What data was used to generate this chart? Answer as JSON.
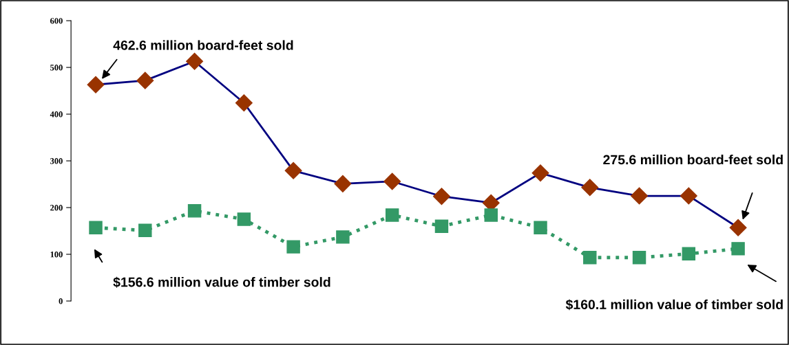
{
  "chart_data": {
    "type": "line",
    "categories": [
      null,
      null,
      null,
      null,
      null,
      null,
      null,
      null,
      null,
      null,
      null,
      null,
      null,
      null
    ],
    "series": [
      {
        "color": "#000080",
        "colors": [
          "#993300",
          "#993300",
          "#993300",
          "#993300",
          "#993300",
          "#993300",
          "#993300",
          "#993300",
          "#993300",
          "#993300",
          "#993300",
          "#993300",
          "#993300",
          "#993300"
        ],
        "marker": "diamond",
        "line_style": "solid",
        "values": [
          463,
          472,
          513,
          424,
          279,
          251,
          256,
          224,
          210,
          274,
          243,
          225,
          225,
          157
        ]
      },
      {
        "color": "#339966",
        "marker": "square",
        "line_style": "dotted",
        "values": [
          157,
          151,
          193,
          175,
          116,
          137,
          184,
          160,
          184,
          157,
          93,
          93,
          101,
          112
        ]
      }
    ],
    "ylim": [
      0,
      600
    ],
    "yticks": [
      0,
      100,
      200,
      300,
      400,
      500,
      600
    ],
    "grid": false,
    "legend": false,
    "annotations": [
      "462.6 million board-feet sold",
      "275.6 million board-feet sold",
      "$156.6 million value of timber sold",
      "$160.1 million value of timber sold"
    ]
  }
}
